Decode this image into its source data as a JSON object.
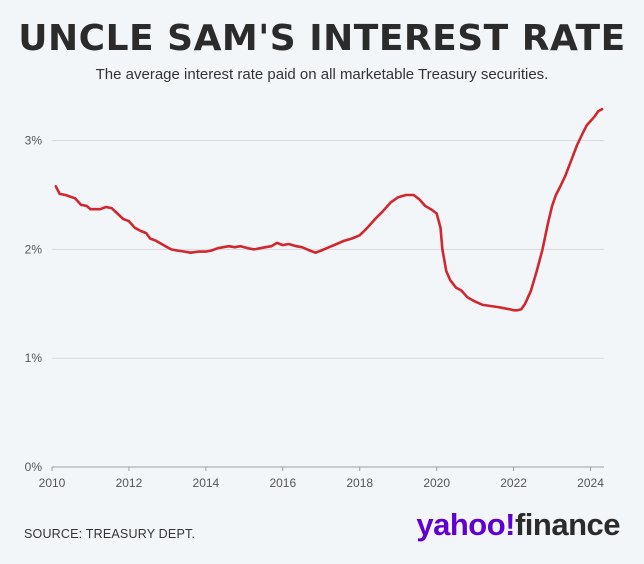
{
  "header": {
    "title": "UNCLE SAM'S INTEREST RATE",
    "subtitle": "The average interest rate paid on all marketable Treasury securities."
  },
  "footer": {
    "source": "SOURCE: TREASURY DEPT.",
    "logo_primary": "yahoo!",
    "logo_secondary": "finance"
  },
  "colors": {
    "line": "#d0282e",
    "grid": "#d6d9dc",
    "axis_text": "#555555",
    "logo_purple": "#6001d2"
  },
  "chart_data": {
    "type": "line",
    "title": "UNCLE SAM'S INTEREST RATE",
    "subtitle": "The average interest rate paid on all marketable Treasury securities.",
    "xlabel": "",
    "ylabel": "",
    "xlim": [
      2010,
      2024.35
    ],
    "ylim": [
      0,
      3.3
    ],
    "x_ticks": [
      2010,
      2012,
      2014,
      2016,
      2018,
      2020,
      2022,
      2024
    ],
    "x_tick_labels": [
      "2010",
      "2012",
      "2014",
      "2016",
      "2018",
      "2020",
      "2022",
      "2024"
    ],
    "y_ticks": [
      0,
      1,
      2,
      3
    ],
    "y_tick_labels": [
      "0%",
      "1%",
      "2%",
      "3%"
    ],
    "grid": "horizontal",
    "series": [
      {
        "x": [
          2010.1,
          2010.2,
          2010.35,
          2010.6,
          2010.75,
          2010.9,
          2011.0,
          2011.25,
          2011.4,
          2011.55,
          2011.7,
          2011.85,
          2012.0,
          2012.15,
          2012.3,
          2012.45,
          2012.55,
          2012.7,
          2012.8,
          2012.95,
          2013.1,
          2013.25,
          2013.45,
          2013.6,
          2013.8,
          2014.0,
          2014.15,
          2014.3,
          2014.45,
          2014.6,
          2014.75,
          2014.9,
          2015.1,
          2015.25,
          2015.4,
          2015.55,
          2015.7,
          2015.85,
          2016.0,
          2016.15,
          2016.35,
          2016.5,
          2016.7,
          2016.85,
          2017.0,
          2017.2,
          2017.4,
          2017.6,
          2017.8,
          2018.0,
          2018.2,
          2018.4,
          2018.6,
          2018.8,
          2019.0,
          2019.2,
          2019.4,
          2019.55,
          2019.7,
          2019.85,
          2020.0,
          2020.1,
          2020.15,
          2020.25,
          2020.35,
          2020.5,
          2020.65,
          2020.8,
          2021.0,
          2021.2,
          2021.4,
          2021.6,
          2021.75,
          2021.9,
          2022.0,
          2022.1,
          2022.2,
          2022.3,
          2022.45,
          2022.6,
          2022.75,
          2022.9,
          2023.0,
          2023.1,
          2023.2,
          2023.35,
          2023.5,
          2023.65,
          2023.8,
          2023.9,
          2024.0,
          2024.1,
          2024.2,
          2024.3
        ],
        "y": [
          2.58,
          2.51,
          2.5,
          2.47,
          2.41,
          2.4,
          2.37,
          2.37,
          2.39,
          2.38,
          2.33,
          2.28,
          2.26,
          2.2,
          2.17,
          2.15,
          2.1,
          2.08,
          2.06,
          2.03,
          2.0,
          1.99,
          1.98,
          1.97,
          1.98,
          1.98,
          1.99,
          2.01,
          2.02,
          2.03,
          2.02,
          2.03,
          2.01,
          2.0,
          2.01,
          2.02,
          2.03,
          2.06,
          2.04,
          2.05,
          2.03,
          2.02,
          1.99,
          1.97,
          1.99,
          2.02,
          2.05,
          2.08,
          2.1,
          2.13,
          2.2,
          2.28,
          2.35,
          2.43,
          2.48,
          2.5,
          2.5,
          2.46,
          2.4,
          2.37,
          2.33,
          2.2,
          2.0,
          1.8,
          1.72,
          1.65,
          1.62,
          1.56,
          1.52,
          1.49,
          1.48,
          1.47,
          1.46,
          1.45,
          1.44,
          1.44,
          1.45,
          1.5,
          1.62,
          1.8,
          2.0,
          2.25,
          2.4,
          2.5,
          2.57,
          2.68,
          2.82,
          2.96,
          3.07,
          3.14,
          3.18,
          3.22,
          3.27,
          3.29
        ]
      }
    ]
  }
}
